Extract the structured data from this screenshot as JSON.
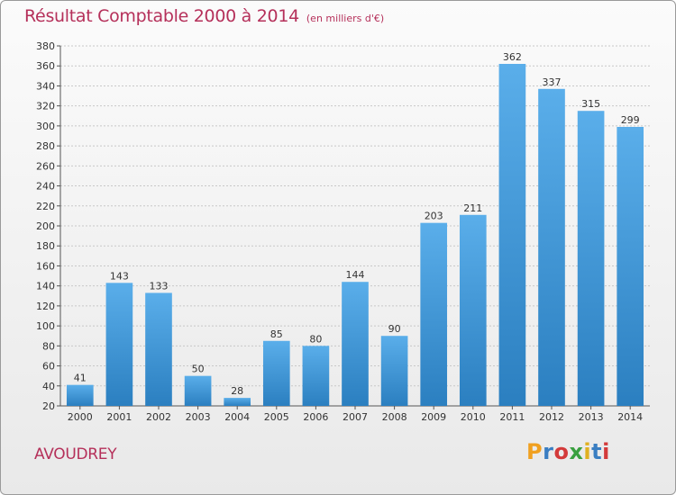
{
  "chart_data": {
    "type": "bar",
    "title": "Résultat Comptable 2000 à 2014",
    "subtitle": "(en milliers d'€)",
    "categories": [
      "2000",
      "2001",
      "2002",
      "2003",
      "2004",
      "2005",
      "2006",
      "2007",
      "2008",
      "2009",
      "2010",
      "2011",
      "2012",
      "2013",
      "2014"
    ],
    "values": [
      41,
      143,
      133,
      50,
      28,
      85,
      80,
      144,
      90,
      203,
      211,
      362,
      337,
      315,
      299
    ],
    "ylim": [
      20,
      380
    ],
    "yticks": [
      20,
      40,
      60,
      80,
      100,
      120,
      140,
      160,
      180,
      200,
      220,
      240,
      260,
      280,
      300,
      320,
      340,
      360,
      380
    ],
    "grid": true,
    "bar_color_top": "#5aaeea",
    "bar_color_bottom": "#2b7fc0",
    "legend": "none"
  },
  "footer": {
    "commune": "AVOUDREY",
    "logo_letters": [
      "P",
      "r",
      "o",
      "x",
      "i",
      "t",
      "i"
    ],
    "logo_colors": [
      "#f0a020",
      "#3a7ec2",
      "#d33a3a",
      "#3aa040",
      "#e0b020",
      "#3a7ec2",
      "#d33a3a"
    ]
  }
}
